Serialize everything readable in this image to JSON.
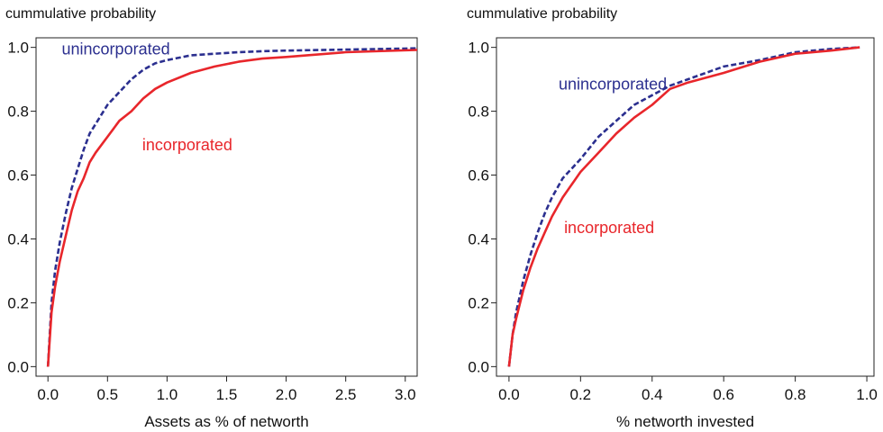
{
  "chart_data": [
    {
      "type": "line",
      "title": "",
      "ylabel": "cummulative probability",
      "xlabel": "Assets as % of networth",
      "xlim": [
        -0.1,
        3.1
      ],
      "ylim": [
        -0.03,
        1.03
      ],
      "xticks": [
        "0.0",
        "0.5",
        "1.0",
        "1.5",
        "2.0",
        "2.5",
        "3.0"
      ],
      "yticks": [
        "0.0",
        "0.2",
        "0.4",
        "0.6",
        "0.8",
        "1.0"
      ],
      "grid": false,
      "legend": "none (inline labels)",
      "series": [
        {
          "name": "unincorporated",
          "color": "#2b2f8f",
          "dash": "dashed",
          "x": [
            0.0,
            0.03,
            0.06,
            0.1,
            0.15,
            0.2,
            0.25,
            0.3,
            0.35,
            0.4,
            0.5,
            0.6,
            0.7,
            0.8,
            0.9,
            1.0,
            1.2,
            1.4,
            1.6,
            1.8,
            2.0,
            2.5,
            3.1
          ],
          "y": [
            0.0,
            0.2,
            0.3,
            0.39,
            0.48,
            0.56,
            0.62,
            0.68,
            0.73,
            0.76,
            0.82,
            0.86,
            0.9,
            0.93,
            0.95,
            0.96,
            0.975,
            0.98,
            0.985,
            0.988,
            0.99,
            0.993,
            0.997
          ]
        },
        {
          "name": "incorporated",
          "color": "#e8262b",
          "dash": "solid",
          "x": [
            0.0,
            0.03,
            0.06,
            0.1,
            0.15,
            0.2,
            0.25,
            0.3,
            0.35,
            0.4,
            0.5,
            0.6,
            0.7,
            0.8,
            0.9,
            1.0,
            1.2,
            1.4,
            1.6,
            1.8,
            2.0,
            2.5,
            3.1
          ],
          "y": [
            0.0,
            0.17,
            0.25,
            0.33,
            0.41,
            0.49,
            0.55,
            0.59,
            0.64,
            0.67,
            0.72,
            0.77,
            0.8,
            0.84,
            0.87,
            0.89,
            0.92,
            0.94,
            0.955,
            0.965,
            0.97,
            0.985,
            0.992
          ]
        }
      ],
      "annotations": [
        {
          "text": "unincorporated",
          "color": "#2b2f8f",
          "x": 0.57,
          "y": 0.995
        },
        {
          "text": "incorporated",
          "color": "#e8262b",
          "x": 1.17,
          "y": 0.695
        }
      ]
    },
    {
      "type": "line",
      "title": "",
      "ylabel": "cummulative probability",
      "xlabel": "% networth invested",
      "xlim": [
        -0.035,
        1.02
      ],
      "ylim": [
        -0.03,
        1.03
      ],
      "xticks": [
        "0.0",
        "0.2",
        "0.4",
        "0.6",
        "0.8",
        "1.0"
      ],
      "yticks": [
        "0.0",
        "0.2",
        "0.4",
        "0.6",
        "0.8",
        "1.0"
      ],
      "grid": false,
      "legend": "none (inline labels)",
      "series": [
        {
          "name": "unincorporated",
          "color": "#2b2f8f",
          "dash": "dashed",
          "x": [
            0.0,
            0.01,
            0.02,
            0.04,
            0.06,
            0.08,
            0.1,
            0.12,
            0.15,
            0.2,
            0.25,
            0.3,
            0.35,
            0.4,
            0.45,
            0.5,
            0.6,
            0.7,
            0.8,
            0.9,
            0.98
          ],
          "y": [
            0.0,
            0.1,
            0.17,
            0.27,
            0.35,
            0.42,
            0.48,
            0.53,
            0.59,
            0.65,
            0.72,
            0.77,
            0.82,
            0.85,
            0.88,
            0.9,
            0.94,
            0.96,
            0.985,
            0.995,
            1.0
          ]
        },
        {
          "name": "incorporated",
          "color": "#e8262b",
          "dash": "solid",
          "x": [
            0.0,
            0.01,
            0.02,
            0.04,
            0.06,
            0.08,
            0.1,
            0.12,
            0.15,
            0.2,
            0.25,
            0.3,
            0.35,
            0.4,
            0.45,
            0.5,
            0.6,
            0.7,
            0.8,
            0.9,
            0.98
          ],
          "y": [
            0.0,
            0.1,
            0.15,
            0.24,
            0.31,
            0.37,
            0.42,
            0.47,
            0.53,
            0.61,
            0.67,
            0.73,
            0.78,
            0.82,
            0.87,
            0.89,
            0.92,
            0.955,
            0.98,
            0.99,
            1.0
          ]
        }
      ],
      "annotations": [
        {
          "text": "unincorporated",
          "color": "#2b2f8f",
          "x": 0.29,
          "y": 0.885
        },
        {
          "text": "incorporated",
          "color": "#e8262b",
          "x": 0.28,
          "y": 0.435
        }
      ]
    }
  ]
}
